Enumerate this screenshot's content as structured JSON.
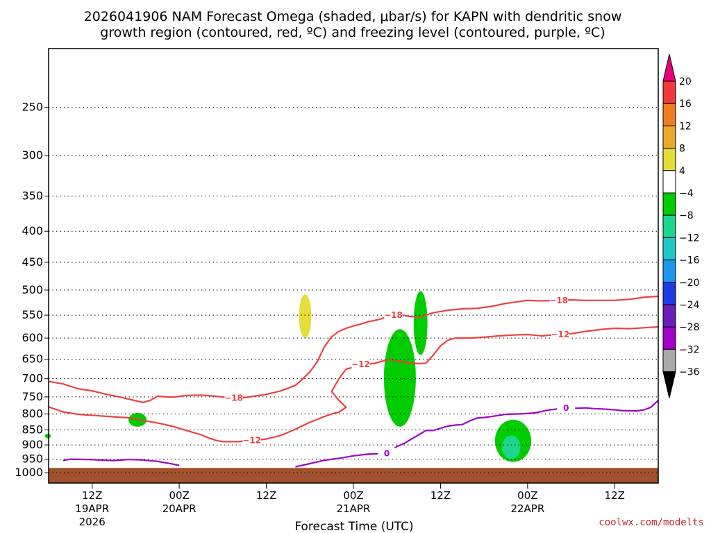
{
  "chart_data": {
    "type": "time-height cross section",
    "title": {
      "line1": "2026041906 NAM Forecast Omega (shaded, μbar/s) for KAPN with dendritic snow",
      "line2": "growth region (contoured, red, ºC) and freezing level (contoured, purple, ºC)"
    },
    "xlabel": "Forecast Time (UTC)",
    "credit": "coolwx.com/modelts",
    "y_axis": {
      "unit": "mb",
      "scale": "log",
      "range": [
        200,
        1040
      ],
      "ticks": [
        250,
        300,
        350,
        400,
        450,
        500,
        550,
        600,
        650,
        700,
        750,
        800,
        850,
        900,
        950,
        1000
      ],
      "tick_labels": [
        "250",
        "300",
        "350",
        "400",
        "450",
        "500",
        "550",
        "600",
        "650",
        "700",
        "750",
        "800",
        "850",
        "900",
        "950",
        "1000"
      ],
      "grid": true
    },
    "x_axis": {
      "unit": "forecast hour",
      "range": [
        0,
        84
      ],
      "ticks": [
        {
          "hour": 6,
          "lines": [
            "12Z",
            "19APR",
            "2026"
          ]
        },
        {
          "hour": 18,
          "lines": [
            "00Z",
            "20APR"
          ]
        },
        {
          "hour": 30,
          "lines": [
            "12Z"
          ]
        },
        {
          "hour": 42,
          "lines": [
            "00Z",
            "21APR"
          ]
        },
        {
          "hour": 54,
          "lines": [
            "12Z"
          ]
        },
        {
          "hour": 66,
          "lines": [
            "00Z",
            "22APR"
          ]
        },
        {
          "hour": 78,
          "lines": [
            "12Z"
          ]
        }
      ]
    },
    "colorbar": {
      "labels": [
        "20",
        "16",
        "12",
        "8",
        "4",
        "−4",
        "−8",
        "−12",
        "−16",
        "−20",
        "−24",
        "−28",
        "−32",
        "−36"
      ],
      "colors": [
        "#e8007a",
        "#ee3a3a",
        "#ee7e22",
        "#e8a82a",
        "#e6dc3a",
        "#ffffff",
        "#00cc00",
        "#1cd68e",
        "#1ec8c8",
        "#1e96ee",
        "#1e3ce6",
        "#6a1eb8",
        "#a000c8",
        "#a8a8a8",
        "#000000"
      ]
    },
    "contours": [
      {
        "color": "#ee4040",
        "label": "−18",
        "points": [
          [
            0,
            707
          ],
          [
            2,
            714
          ],
          [
            4,
            727
          ],
          [
            6,
            733
          ],
          [
            8,
            743
          ],
          [
            10,
            751
          ],
          [
            12,
            761
          ],
          [
            13,
            766
          ],
          [
            14,
            760
          ],
          [
            15,
            748
          ],
          [
            17,
            751
          ],
          [
            19,
            746
          ],
          [
            21,
            745
          ],
          [
            23,
            748
          ],
          [
            25,
            753
          ],
          [
            27,
            752
          ],
          [
            30,
            743
          ],
          [
            32,
            733
          ],
          [
            34,
            718
          ],
          [
            35,
            701
          ],
          [
            36,
            682
          ],
          [
            37,
            657
          ],
          [
            38,
            620
          ],
          [
            39,
            597
          ],
          [
            40,
            585
          ],
          [
            41,
            578
          ],
          [
            42,
            573
          ],
          [
            43,
            569
          ],
          [
            44,
            564
          ],
          [
            45,
            561
          ],
          [
            46,
            557
          ],
          [
            47,
            550
          ],
          [
            48,
            546
          ],
          [
            49,
            551
          ],
          [
            51,
            555
          ],
          [
            53,
            545
          ],
          [
            55,
            540
          ],
          [
            57,
            537
          ],
          [
            59,
            536
          ],
          [
            61,
            532
          ],
          [
            63,
            526
          ],
          [
            66,
            520
          ],
          [
            68,
            521
          ],
          [
            70,
            520
          ],
          [
            72,
            519
          ],
          [
            74,
            520
          ],
          [
            76,
            520
          ],
          [
            78,
            520
          ],
          [
            80,
            518
          ],
          [
            82,
            514
          ],
          [
            84,
            512
          ]
        ]
      },
      {
        "color": "#ee4040",
        "label": "−12",
        "points": [
          [
            0,
            779
          ],
          [
            2,
            794
          ],
          [
            4,
            801
          ],
          [
            7,
            806
          ],
          [
            9,
            809
          ],
          [
            11,
            812
          ],
          [
            13,
            820
          ],
          [
            15,
            828
          ],
          [
            17,
            838
          ],
          [
            19,
            852
          ],
          [
            21,
            866
          ],
          [
            22,
            876
          ],
          [
            23,
            884
          ],
          [
            24,
            889
          ],
          [
            26,
            889
          ],
          [
            28,
            886
          ],
          [
            30,
            880
          ],
          [
            32,
            868
          ],
          [
            34,
            848
          ],
          [
            36,
            826
          ],
          [
            38,
            808
          ],
          [
            39,
            800
          ],
          [
            40,
            795
          ],
          [
            41,
            780
          ],
          [
            40,
            760
          ],
          [
            39,
            735
          ],
          [
            40,
            700
          ],
          [
            41,
            675
          ],
          [
            43,
            665
          ],
          [
            45,
            660
          ],
          [
            46,
            655
          ],
          [
            47,
            651
          ],
          [
            48,
            655
          ],
          [
            50,
            660
          ],
          [
            51,
            661
          ],
          [
            52,
            660
          ],
          [
            53,
            640
          ],
          [
            54,
            618
          ],
          [
            55,
            605
          ],
          [
            56,
            600
          ],
          [
            58,
            600
          ],
          [
            60,
            598
          ],
          [
            62,
            595
          ],
          [
            64,
            593
          ],
          [
            66,
            592
          ],
          [
            68,
            595
          ],
          [
            70,
            592
          ],
          [
            72,
            590
          ],
          [
            74,
            585
          ],
          [
            76,
            581
          ],
          [
            78,
            578
          ],
          [
            80,
            579
          ],
          [
            82,
            577
          ],
          [
            84,
            575
          ]
        ]
      },
      {
        "color": "#a000c8",
        "label": "0",
        "points": [
          [
            2,
            955
          ],
          [
            3,
            950
          ],
          [
            5,
            951
          ],
          [
            7,
            953
          ],
          [
            9,
            955
          ],
          [
            11,
            951
          ],
          [
            13,
            953
          ],
          [
            15,
            958
          ],
          [
            17,
            967
          ],
          [
            18,
            973
          ]
        ]
      },
      {
        "color": "#a000c8",
        "label": "0",
        "points": [
          [
            34,
            978
          ],
          [
            36,
            966
          ],
          [
            38,
            954
          ],
          [
            40,
            947
          ],
          [
            42,
            938
          ],
          [
            44,
            932
          ],
          [
            46,
            930
          ],
          [
            47,
            925
          ],
          [
            48,
            905
          ],
          [
            49,
            895
          ],
          [
            50,
            880
          ],
          [
            51,
            866
          ],
          [
            52,
            852
          ],
          [
            53,
            852
          ],
          [
            54,
            845
          ],
          [
            55,
            838
          ],
          [
            56,
            835
          ],
          [
            57,
            833
          ],
          [
            58,
            822
          ],
          [
            59,
            813
          ],
          [
            60,
            811
          ],
          [
            61,
            808
          ],
          [
            63,
            801
          ],
          [
            65,
            800
          ],
          [
            67,
            797
          ],
          [
            69,
            788
          ],
          [
            71,
            783
          ],
          [
            73,
            783
          ],
          [
            74,
            782
          ],
          [
            75,
            784
          ],
          [
            77,
            786
          ],
          [
            79,
            790
          ],
          [
            81,
            791
          ],
          [
            82,
            788
          ],
          [
            83,
            780
          ],
          [
            84,
            760
          ]
        ]
      }
    ],
    "omega_regions": [
      {
        "value": 5,
        "color": "#e6dc3a",
        "hours": [
          34.5,
          36.2
        ],
        "pressure": [
          508,
          600
        ]
      },
      {
        "value": -6,
        "color": "#00cc00",
        "hours": [
          11,
          13.5
        ],
        "pressure": [
          797,
          840
        ]
      },
      {
        "value": -6,
        "color": "#00cc00",
        "hours": [
          46.2,
          50.6
        ],
        "pressure": [
          580,
          840
        ]
      },
      {
        "value": -6,
        "color": "#00cc00",
        "hours": [
          50.3,
          52.2
        ],
        "pressure": [
          502,
          640
        ]
      },
      {
        "value": -6,
        "color": "#00cc00",
        "hours": [
          61.5,
          66.5
        ],
        "pressure": [
          818,
          960
        ]
      },
      {
        "value": -10,
        "color": "#1cd68e",
        "hours": [
          62.5,
          65.0
        ],
        "pressure": [
          868,
          950
        ]
      },
      {
        "value": -6,
        "color": "#00cc00",
        "hours": [
          -0.5,
          0.3
        ],
        "pressure": [
          862,
          878
        ]
      }
    ],
    "terrain": {
      "color": "#a0522d",
      "top_mb": 982
    }
  }
}
